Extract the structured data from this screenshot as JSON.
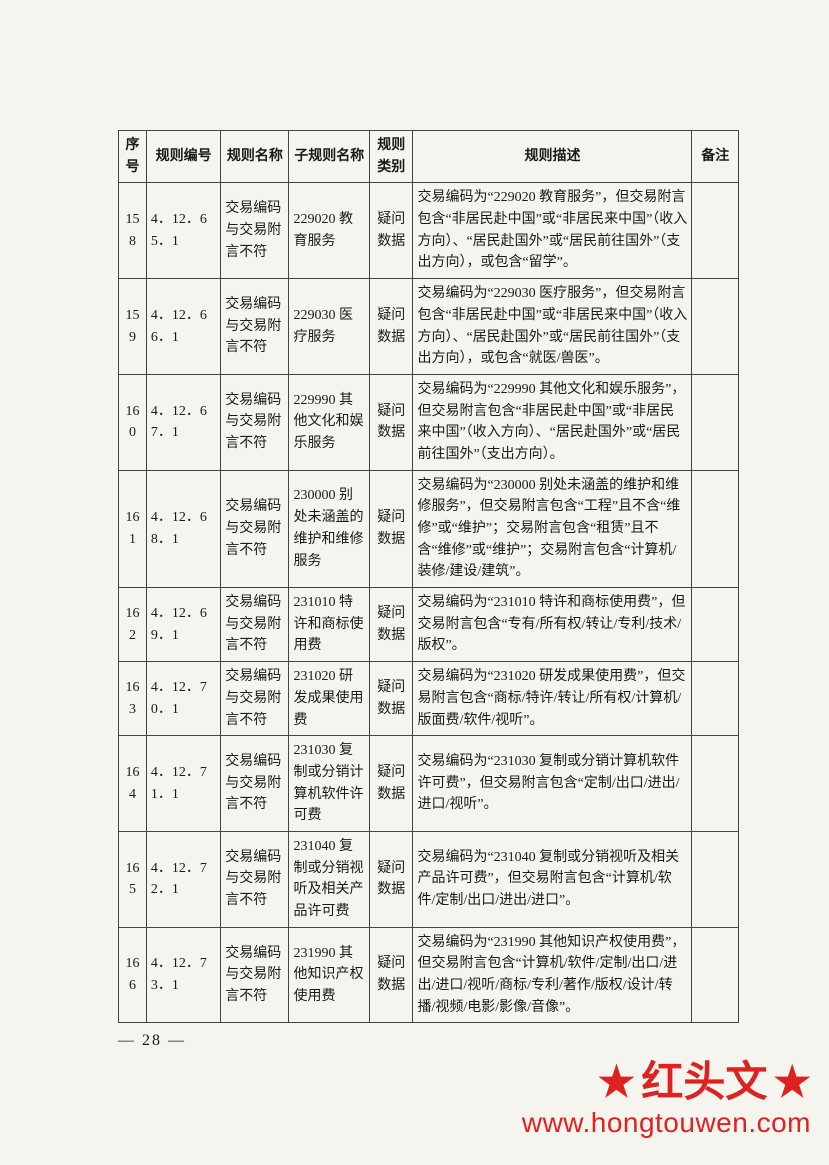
{
  "table": {
    "columns": [
      "序号",
      "规则编号",
      "规则名称",
      "子规则名称",
      "规则类别",
      "规则描述",
      "备注"
    ],
    "col_widths_pct": [
      4.5,
      12,
      11,
      13,
      7,
      45,
      7.5
    ],
    "border_color": "#444444",
    "font_size_pt": 10.5,
    "rows": [
      {
        "seq": "158",
        "code": "4．12．65．1",
        "name": "交易编码与交易附言不符",
        "sub": "229020 教育服务",
        "cat": "疑问数据",
        "desc": "交易编码为“229020 教育服务”，但交易附言包含“非居民赴中国”或“非居民来中国”（收入方向）、“居民赴国外”或“居民前往国外”（支出方向），或包含“留学”。",
        "note": ""
      },
      {
        "seq": "159",
        "code": "4．12．66．1",
        "name": "交易编码与交易附言不符",
        "sub": "229030 医疗服务",
        "cat": "疑问数据",
        "desc": "交易编码为“229030 医疗服务”，但交易附言包含“非居民赴中国”或“非居民来中国”（收入方向）、“居民赴国外”或“居民前往国外”（支出方向），或包含“就医/兽医”。",
        "note": ""
      },
      {
        "seq": "160",
        "code": "4．12．67．1",
        "name": "交易编码与交易附言不符",
        "sub": "229990 其他文化和娱乐服务",
        "cat": "疑问数据",
        "desc": "交易编码为“229990 其他文化和娱乐服务”，但交易附言包含“非居民赴中国”或“非居民来中国”（收入方向）、“居民赴国外”或“居民前往国外”（支出方向）。",
        "note": ""
      },
      {
        "seq": "161",
        "code": "4．12．68．1",
        "name": "交易编码与交易附言不符",
        "sub": "230000 别处未涵盖的维护和维修服务",
        "cat": "疑问数据",
        "desc": "交易编码为“230000 别处未涵盖的维护和维修服务”，但交易附言包含“工程”且不含“维修”或“维护”；交易附言包含“租赁”且不含“维修”或“维护”；交易附言包含“计算机/装修/建设/建筑”。",
        "note": ""
      },
      {
        "seq": "162",
        "code": "4．12．69．1",
        "name": "交易编码与交易附言不符",
        "sub": "231010 特许和商标使用费",
        "cat": "疑问数据",
        "desc": "交易编码为“231010 特许和商标使用费”，但交易附言包含“专有/所有权/转让/专利/技术/版权”。",
        "note": ""
      },
      {
        "seq": "163",
        "code": "4．12．70．1",
        "name": "交易编码与交易附言不符",
        "sub": "231020 研发成果使用费",
        "cat": "疑问数据",
        "desc": "交易编码为“231020 研发成果使用费”，但交易附言包含“商标/特许/转让/所有权/计算机/版面费/软件/视听”。",
        "note": ""
      },
      {
        "seq": "164",
        "code": "4．12．71．1",
        "name": "交易编码与交易附言不符",
        "sub": "231030 复制或分销计算机软件许可费",
        "cat": "疑问数据",
        "desc": "交易编码为“231030 复制或分销计算机软件许可费”，但交易附言包含“定制/出口/进出/进口/视听”。",
        "note": ""
      },
      {
        "seq": "165",
        "code": "4．12．72．1",
        "name": "交易编码与交易附言不符",
        "sub": "231040 复制或分销视听及相关产品许可费",
        "cat": "疑问数据",
        "desc": "交易编码为“231040 复制或分销视听及相关产品许可费”，但交易附言包含“计算机/软件/定制/出口/进出/进口”。",
        "note": ""
      },
      {
        "seq": "166",
        "code": "4．12．73．1",
        "name": "交易编码与交易附言不符",
        "sub": "231990 其他知识产权使用费",
        "cat": "疑问数据",
        "desc": "交易编码为“231990 其他知识产权使用费”，但交易附言包含“计算机/软件/定制/出口/进出/进口/视听/商标/专利/著作/版权/设计/转播/视频/电影/影像/音像”。",
        "note": ""
      }
    ]
  },
  "page_number": "—  28  —",
  "watermark": {
    "text": "红头文",
    "url": "www.hongtouwen.com",
    "color": "#dd2222",
    "star_glyph": "★"
  },
  "background_color": "#f6f4ef"
}
